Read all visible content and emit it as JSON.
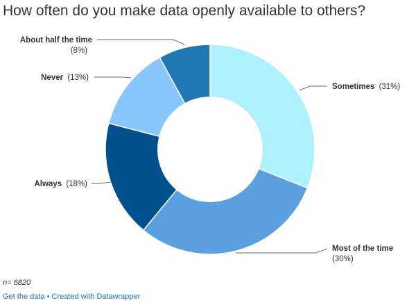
{
  "chart_data": {
    "type": "pie",
    "title": "How often do you make data openly available to others?",
    "slices": [
      {
        "label": "Sometimes",
        "value": 31,
        "value_label": "(31%)",
        "color": "#aef0fd"
      },
      {
        "label": "Most of the time",
        "value": 30,
        "value_label": "(30%)",
        "color": "#5aa0e0"
      },
      {
        "label": "Always",
        "value": 18,
        "value_label": "(18%)",
        "color": "#00508d"
      },
      {
        "label": "Never",
        "value": 13,
        "value_label": "(13%)",
        "color": "#88c6fc"
      },
      {
        "label": "About half the time",
        "value": 8,
        "value_label": "(8%)",
        "color": "#1f77b4"
      }
    ],
    "note": "n= 6820"
  },
  "footer": {
    "get_data": "Get the data",
    "separator": " • ",
    "created_with": "Created with Datawrapper"
  }
}
